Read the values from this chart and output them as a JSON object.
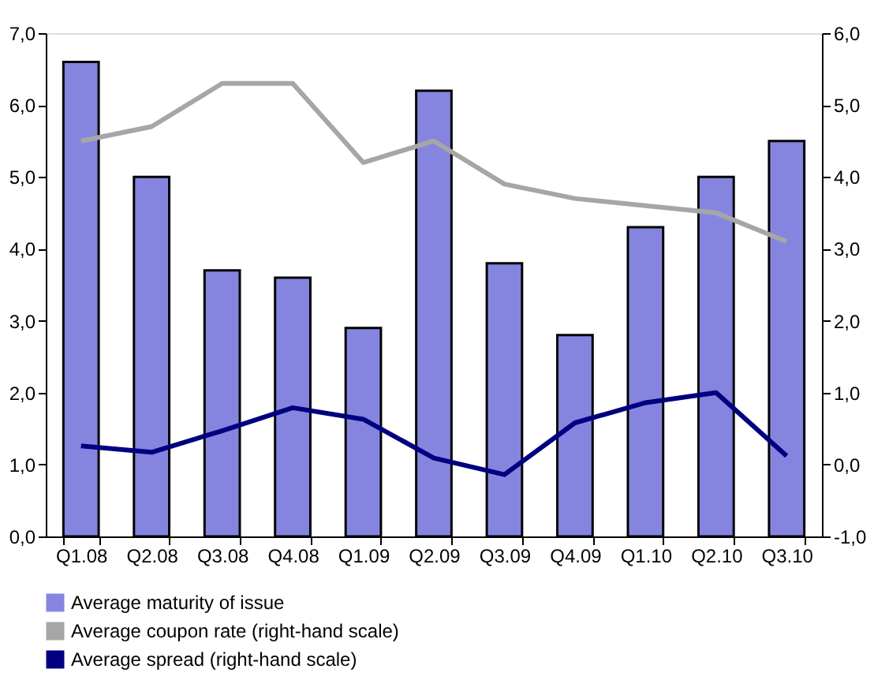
{
  "chart_data": {
    "type": "bar",
    "categories": [
      "Q1.08",
      "Q2.08",
      "Q3.08",
      "Q4.08",
      "Q1.09",
      "Q2.09",
      "Q3.09",
      "Q4.09",
      "Q1.10",
      "Q2.10",
      "Q3.10"
    ],
    "series": [
      {
        "name": "Average maturity of issue",
        "color": "#8585e0",
        "values": [
          6.6,
          5.0,
          3.7,
          3.6,
          2.9,
          6.2,
          3.8,
          2.8,
          4.3,
          5.0,
          5.5
        ]
      },
      {
        "name": "Average coupon rate (right-hand scale)",
        "type": "line",
        "axis": "y2",
        "color": "#a6a6a6",
        "values": [
          4.5,
          4.7,
          5.3,
          5.3,
          4.2,
          4.5,
          3.9,
          3.7,
          3.6,
          3.5,
          3.1
        ]
      },
      {
        "name": "Average spread (right-hand scale)",
        "type": "line",
        "axis": "y2",
        "color": "#000080",
        "values": [
          0.26,
          0.17,
          0.47,
          0.79,
          0.63,
          0.09,
          -0.14,
          0.58,
          0.86,
          1.0,
          0.12
        ]
      }
    ],
    "ylim": [
      0,
      7
    ],
    "yticks": [
      {
        "value": 0,
        "label": "0,0"
      },
      {
        "value": 1,
        "label": "1,0"
      },
      {
        "value": 2,
        "label": "2,0"
      },
      {
        "value": 3,
        "label": "3,0"
      },
      {
        "value": 4,
        "label": "4,0"
      },
      {
        "value": 5,
        "label": "5,0"
      },
      {
        "value": 6,
        "label": "6,0"
      },
      {
        "value": 7,
        "label": "7,0"
      }
    ],
    "y2lim": [
      -1,
      6
    ],
    "y2ticks": [
      {
        "value": -1,
        "label": "-1,0"
      },
      {
        "value": 0,
        "label": "0,0"
      },
      {
        "value": 1,
        "label": "1,0"
      },
      {
        "value": 2,
        "label": "2,0"
      },
      {
        "value": 3,
        "label": "3,0"
      },
      {
        "value": 4,
        "label": "4,0"
      },
      {
        "value": 5,
        "label": "5,0"
      },
      {
        "value": 6,
        "label": "6,0"
      }
    ],
    "grid": false,
    "legend": "bottom",
    "marker": "none",
    "line_style": "solid"
  }
}
